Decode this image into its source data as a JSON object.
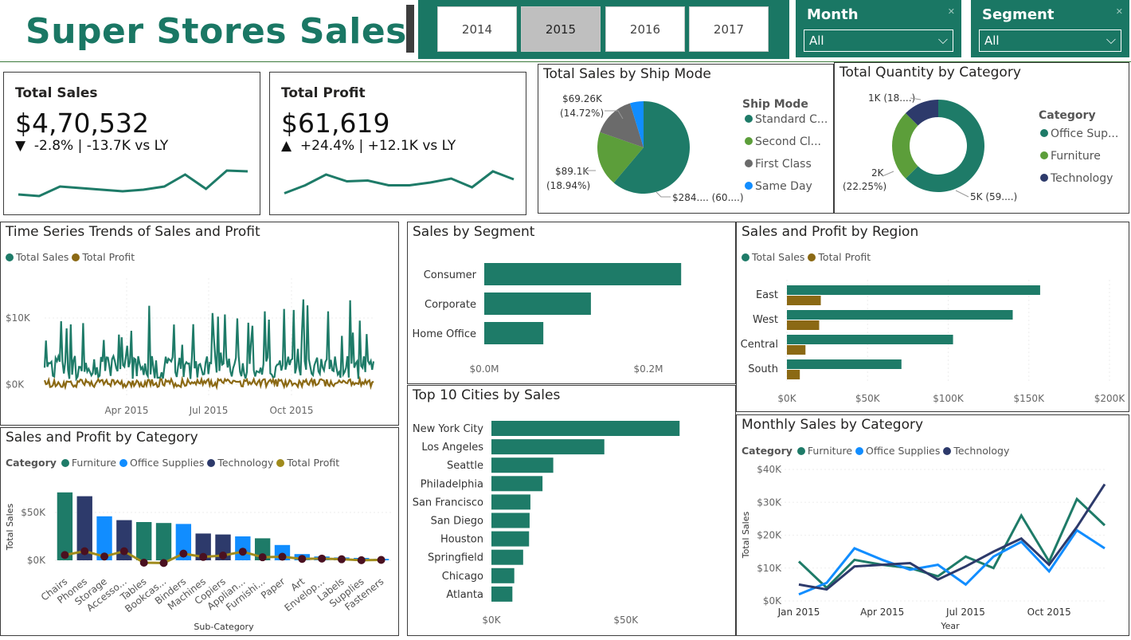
{
  "header": {
    "title": "Super Stores Sales"
  },
  "years": {
    "items": [
      "2014",
      "2015",
      "2016",
      "2017"
    ],
    "selected": "2015"
  },
  "slicers": {
    "month": {
      "label": "Month",
      "value": "All"
    },
    "segment": {
      "label": "Segment",
      "value": "All"
    }
  },
  "kpis": {
    "sales": {
      "title": "Total Sales",
      "value": "$4,70,532",
      "delta": "-2.8% | -13.7K vs LY",
      "arrow": "▼",
      "trend": [
        0.22,
        0.18,
        0.42,
        0.38,
        0.34,
        0.3,
        0.34,
        0.42,
        0.72,
        0.36,
        0.82,
        0.8
      ]
    },
    "profit": {
      "title": "Total Profit",
      "value": "$61,619",
      "delta": "+24.4% | +12.1K vs LY",
      "arrow": "▲",
      "trend": [
        0.25,
        0.45,
        0.72,
        0.55,
        0.57,
        0.45,
        0.45,
        0.52,
        0.62,
        0.4,
        0.8,
        0.6
      ]
    }
  },
  "colors": {
    "teal": "#1e7b68",
    "brown": "#8b6914",
    "green": "#5c9e3a",
    "gray": "#6b6b6b",
    "blue": "#118dff",
    "navy": "#2d3a6b",
    "olive": "#a08b1c",
    "maroon": "#4a1020"
  },
  "ship_mode": {
    "title": "Total Sales by Ship Mode",
    "legend_title": "Ship Mode",
    "legend": [
      "Standard C...",
      "Second Cl...",
      "First Class",
      "Same Day"
    ],
    "labels": {
      "first": "$69.26K",
      "first_pct": "(14.72%)",
      "second": "$89.1K",
      "second_pct": "(18.94%)",
      "standard": "$284.... (60....)"
    }
  },
  "quantity": {
    "title": "Total Quantity by Category",
    "legend_title": "Category",
    "legend": [
      "Office Sup...",
      "Furniture",
      "Technology"
    ],
    "labels": {
      "tech": "1K (18....)",
      "furn": "2K",
      "furn_pct": "(22.25%)",
      "office": "5K (59....)"
    }
  },
  "ts": {
    "title": "Time Series Trends of Sales and Profit",
    "legend": [
      "Total Sales",
      "Total Profit"
    ],
    "yticks": [
      "$10K",
      "$0K"
    ],
    "xticks": [
      "Apr 2015",
      "Jul 2015",
      "Oct 2015"
    ]
  },
  "cat": {
    "title": "Sales and Profit by Category",
    "legend_title": "Category",
    "legend": [
      "Furniture",
      "Office Supplies",
      "Technology",
      "Total Profit"
    ],
    "ylabel": "Total Sales",
    "xlabel": "Sub-Category",
    "yticks": [
      "$50K",
      "$0K"
    ]
  },
  "segment": {
    "title": "Sales by Segment",
    "xticks": [
      "$0.0M",
      "$0.2M"
    ]
  },
  "cities": {
    "title": "Top 10 Cities by Sales",
    "xticks": [
      "$0K",
      "$50K"
    ]
  },
  "region": {
    "title": "Sales and Profit by Region",
    "legend": [
      "Total Sales",
      "Total Profit"
    ],
    "xticks": [
      "$0K",
      "$50K",
      "$100K",
      "$150K",
      "$200K"
    ]
  },
  "monthly": {
    "title": "Monthly Sales by Category",
    "legend_title": "Category",
    "legend": [
      "Furniture",
      "Office Supplies",
      "Technology"
    ],
    "ylabel": "Total Sales",
    "xlabel": "Year",
    "yticks": [
      "$40K",
      "$30K",
      "$20K",
      "$10K",
      "$0K"
    ],
    "xticks": [
      "Jan 2015",
      "Apr 2015",
      "Jul 2015",
      "Oct 2015"
    ]
  },
  "chart_data": [
    {
      "type": "pie",
      "title": "Total Sales by Ship Mode",
      "categories": [
        "Standard Class",
        "Second Class",
        "First Class",
        "Same Day"
      ],
      "values": [
        284000,
        89100,
        69260,
        22000
      ],
      "percent": [
        60.6,
        18.94,
        14.72,
        4.7
      ]
    },
    {
      "type": "pie",
      "title": "Total Quantity by Category",
      "categories": [
        "Office Supplies",
        "Furniture",
        "Technology"
      ],
      "values": [
        5000,
        2000,
        1000
      ],
      "percent": [
        59.5,
        22.25,
        18.25
      ]
    },
    {
      "type": "bar",
      "title": "Sales by Segment",
      "categories": [
        "Consumer",
        "Corporate",
        "Home Office"
      ],
      "values": [
        240000,
        130000,
        72000
      ],
      "xlim": [
        0,
        300000
      ]
    },
    {
      "type": "bar",
      "title": "Top 10 Cities by Sales",
      "categories": [
        "New York City",
        "Los Angeles",
        "Seattle",
        "Philadelphia",
        "San Francisco",
        "San Diego",
        "Houston",
        "Springfield",
        "Chicago",
        "Atlanta"
      ],
      "values": [
        70000,
        42000,
        23000,
        19000,
        14500,
        14200,
        14000,
        11800,
        8500,
        7800
      ],
      "xlim": [
        0,
        80000
      ]
    },
    {
      "type": "bar",
      "title": "Sales and Profit by Region",
      "categories": [
        "East",
        "West",
        "Central",
        "South"
      ],
      "series": [
        {
          "name": "Total Sales",
          "values": [
            157000,
            140000,
            103000,
            71000
          ]
        },
        {
          "name": "Total Profit",
          "values": [
            21000,
            20000,
            11500,
            8000
          ]
        }
      ],
      "xlim": [
        0,
        200000
      ]
    },
    {
      "type": "bar",
      "title": "Sales and Profit by Category",
      "categories": [
        "Chairs",
        "Phones",
        "Storage",
        "Accesso...",
        "Tables",
        "Bookcas...",
        "Binders",
        "Machines",
        "Copiers",
        "Applian...",
        "Furnishi...",
        "Paper",
        "Art",
        "Envelop...",
        "Labels",
        "Supplies",
        "Fasteners"
      ],
      "category_group": [
        "Furniture",
        "Technology",
        "Office Supplies",
        "Technology",
        "Furniture",
        "Furniture",
        "Office Supplies",
        "Technology",
        "Technology",
        "Office Supplies",
        "Furniture",
        "Office Supplies",
        "Office Supplies",
        "Office Supplies",
        "Office Supplies",
        "Office Supplies",
        "Office Supplies"
      ],
      "series": [
        {
          "name": "Total Sales",
          "values": [
            71000,
            67000,
            46000,
            42000,
            40000,
            39000,
            38000,
            28000,
            27000,
            25000,
            23000,
            16000,
            6500,
            4000,
            3000,
            2500,
            1500
          ]
        },
        {
          "name": "Total Profit",
          "values": [
            5500,
            9500,
            4000,
            9500,
            -2500,
            -2800,
            7000,
            3500,
            5000,
            9000,
            3200,
            3700,
            1500,
            1800,
            1100,
            100,
            400
          ]
        }
      ],
      "ylim": [
        -5000,
        80000
      ]
    },
    {
      "type": "line",
      "title": "Monthly Sales by Category",
      "x": [
        "Jan 2015",
        "Feb 2015",
        "Mar 2015",
        "Apr 2015",
        "May 2015",
        "Jun 2015",
        "Jul 2015",
        "Aug 2015",
        "Sep 2015",
        "Oct 2015",
        "Nov 2015",
        "Dec 2015"
      ],
      "series": [
        {
          "name": "Furniture",
          "values": [
            12000,
            4000,
            12500,
            11000,
            10000,
            7500,
            13500,
            10000,
            26000,
            12000,
            31000,
            23000
          ]
        },
        {
          "name": "Office Supplies",
          "values": [
            2000,
            5500,
            16000,
            12500,
            9500,
            11000,
            5000,
            13500,
            18000,
            9000,
            21500,
            16000
          ]
        },
        {
          "name": "Technology",
          "values": [
            5000,
            3500,
            10500,
            11000,
            11500,
            6500,
            10500,
            15000,
            19000,
            11000,
            22500,
            35500
          ]
        }
      ],
      "ylim": [
        0,
        40000
      ]
    },
    {
      "type": "line",
      "title": "Time Series Trends of Sales and Profit",
      "series": [
        {
          "name": "Total Sales"
        },
        {
          "name": "Total Profit"
        }
      ],
      "ylim": [
        -2000,
        16000
      ]
    }
  ]
}
